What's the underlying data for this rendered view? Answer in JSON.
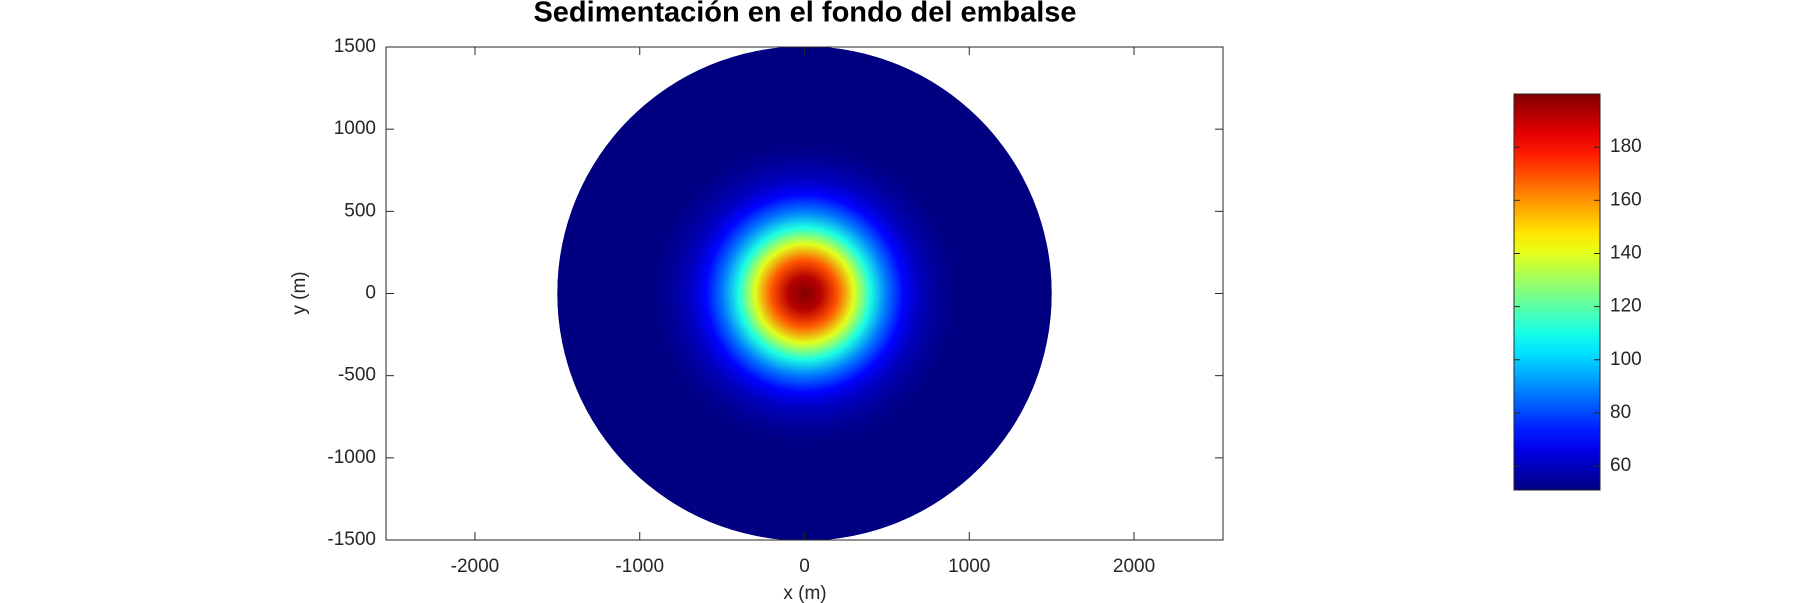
{
  "chart_data": {
    "type": "radial-field",
    "title": "Sedimentación en el fondo del embalse",
    "x_label": "x (m)",
    "y_label": "y (m)",
    "radius": [
      0,
      100,
      200,
      300,
      400,
      500,
      600,
      700,
      800,
      900,
      1000,
      1100,
      1200,
      1300,
      1400,
      1500
    ],
    "values": [
      200,
      192,
      169,
      140,
      111,
      87,
      70,
      60,
      55,
      52,
      51,
      51,
      51,
      51,
      51,
      51
    ],
    "xlim": [
      -2540,
      2540
    ],
    "xticks": [
      -2000,
      -1000,
      0,
      1000,
      2000
    ],
    "ylim": [
      -1500,
      1500
    ],
    "yticks": [
      -1500,
      -1000,
      -500,
      0,
      500,
      1000,
      1500
    ],
    "clim": [
      51,
      200
    ],
    "cticks": [
      60,
      80,
      100,
      120,
      140,
      160,
      180
    ],
    "colormap": "jet"
  }
}
